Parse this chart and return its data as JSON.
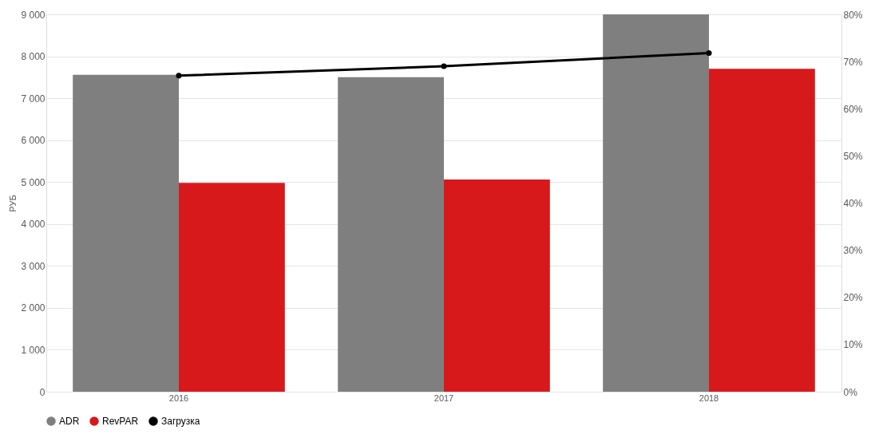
{
  "chart_data": {
    "type": "bar",
    "ylabel": "РУБ",
    "categories": [
      "2016",
      "2017",
      "2018"
    ],
    "series": [
      {
        "name": "ADR",
        "color": "#7f7f7f",
        "values": [
          7560,
          7500,
          9000
        ]
      },
      {
        "name": "RevPAR",
        "color": "#d7191c",
        "values": [
          4980,
          5060,
          7700
        ]
      },
      {
        "name": "Загрузка",
        "color": "#000000",
        "type": "line",
        "axis": "y2",
        "marker": "circle",
        "values": [
          67,
          69,
          71.8
        ]
      }
    ],
    "ylim": [
      0,
      9000
    ],
    "yticks": [
      0,
      {
        "value": 1000,
        "label": "1 000"
      },
      {
        "value": 2000,
        "label": "2 000"
      },
      {
        "value": 3000,
        "label": "3 000"
      },
      {
        "value": 4000,
        "label": "4 000"
      },
      {
        "value": 5000,
        "label": "5 000"
      },
      {
        "value": 6000,
        "label": "6 000"
      },
      {
        "value": 7000,
        "label": "7 000"
      },
      {
        "value": 8000,
        "label": "8 000"
      },
      {
        "value": 9000,
        "label": "9 000"
      }
    ],
    "y2lim": [
      0,
      80
    ],
    "y2ticks": [
      {
        "value": 0,
        "label": "0%"
      },
      {
        "value": 10,
        "label": "10%"
      },
      {
        "value": 20,
        "label": "20%"
      },
      {
        "value": 30,
        "label": "30%"
      },
      {
        "value": 40,
        "label": "40%"
      },
      {
        "value": 50,
        "label": "50%"
      },
      {
        "value": 60,
        "label": "60%"
      },
      {
        "value": 70,
        "label": "70%"
      },
      {
        "value": 80,
        "label": "80%"
      }
    ],
    "grid": "y",
    "legend": "bottom"
  }
}
